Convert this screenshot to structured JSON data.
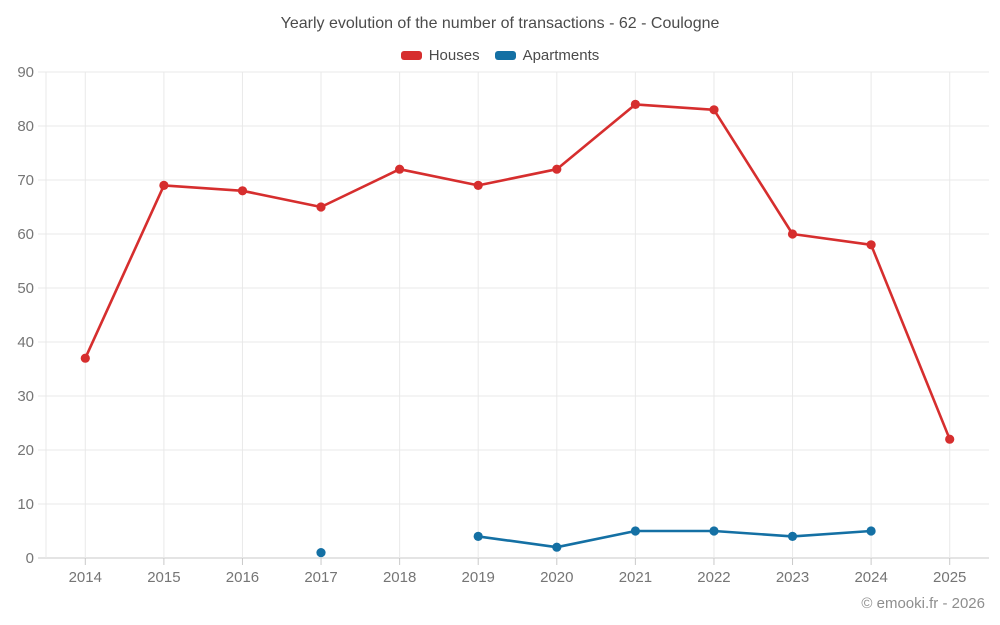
{
  "header": {
    "title": "Yearly evolution of the number of transactions - 62 - Coulogne"
  },
  "legend": [
    {
      "label": "Houses",
      "color": "#d62e2e"
    },
    {
      "label": "Apartments",
      "color": "#1470a4"
    }
  ],
  "footer": {
    "credit": "© emooki.fr - 2026"
  },
  "chart_data": {
    "type": "line",
    "title": "Yearly evolution of the number of transactions - 62 - Coulogne",
    "categories": [
      "2014",
      "2015",
      "2016",
      "2017",
      "2018",
      "2019",
      "2020",
      "2021",
      "2022",
      "2023",
      "2024",
      "2025"
    ],
    "series": [
      {
        "name": "Houses",
        "color": "#d62e2e",
        "values": [
          37,
          69,
          68,
          65,
          72,
          69,
          72,
          84,
          83,
          60,
          58,
          22
        ]
      },
      {
        "name": "Apartments",
        "color": "#1470a4",
        "values": [
          null,
          null,
          null,
          1,
          null,
          4,
          2,
          5,
          5,
          4,
          5,
          null
        ]
      }
    ],
    "xlabel": "",
    "ylabel": "",
    "ylim": [
      0,
      90
    ],
    "y_ticks": [
      0,
      10,
      20,
      30,
      40,
      50,
      60,
      70,
      80,
      90
    ],
    "grid": true,
    "legend_position": "top"
  }
}
